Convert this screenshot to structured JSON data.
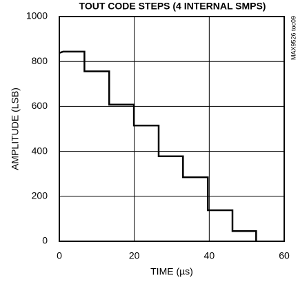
{
  "chart_data": {
    "type": "line",
    "title": "TOUT CODE STEPS (4 INTERNAL SMPS)",
    "xlabel": "TIME (µs)",
    "ylabel": "AMPLITUDE (LSB)",
    "figure_code": "MAX9526 toc09",
    "xlim": [
      0,
      60
    ],
    "ylim": [
      0,
      1000
    ],
    "x_ticks": [
      0,
      20,
      40,
      60
    ],
    "y_ticks": [
      0,
      200,
      400,
      600,
      800,
      1000
    ],
    "grid": true,
    "line_color": "#000000",
    "series": [
      {
        "x": [
          0,
          1,
          6.7,
          6.7,
          13.3,
          13.3,
          19.9,
          19.9,
          26.5,
          26.5,
          33.0,
          33.0,
          39.6,
          39.6,
          46.2,
          46.2,
          52.5,
          52.5
        ],
        "y": [
          838,
          844,
          844,
          756,
          756,
          608,
          608,
          515,
          515,
          378,
          378,
          285,
          285,
          138,
          138,
          45,
          45,
          0
        ]
      }
    ]
  }
}
